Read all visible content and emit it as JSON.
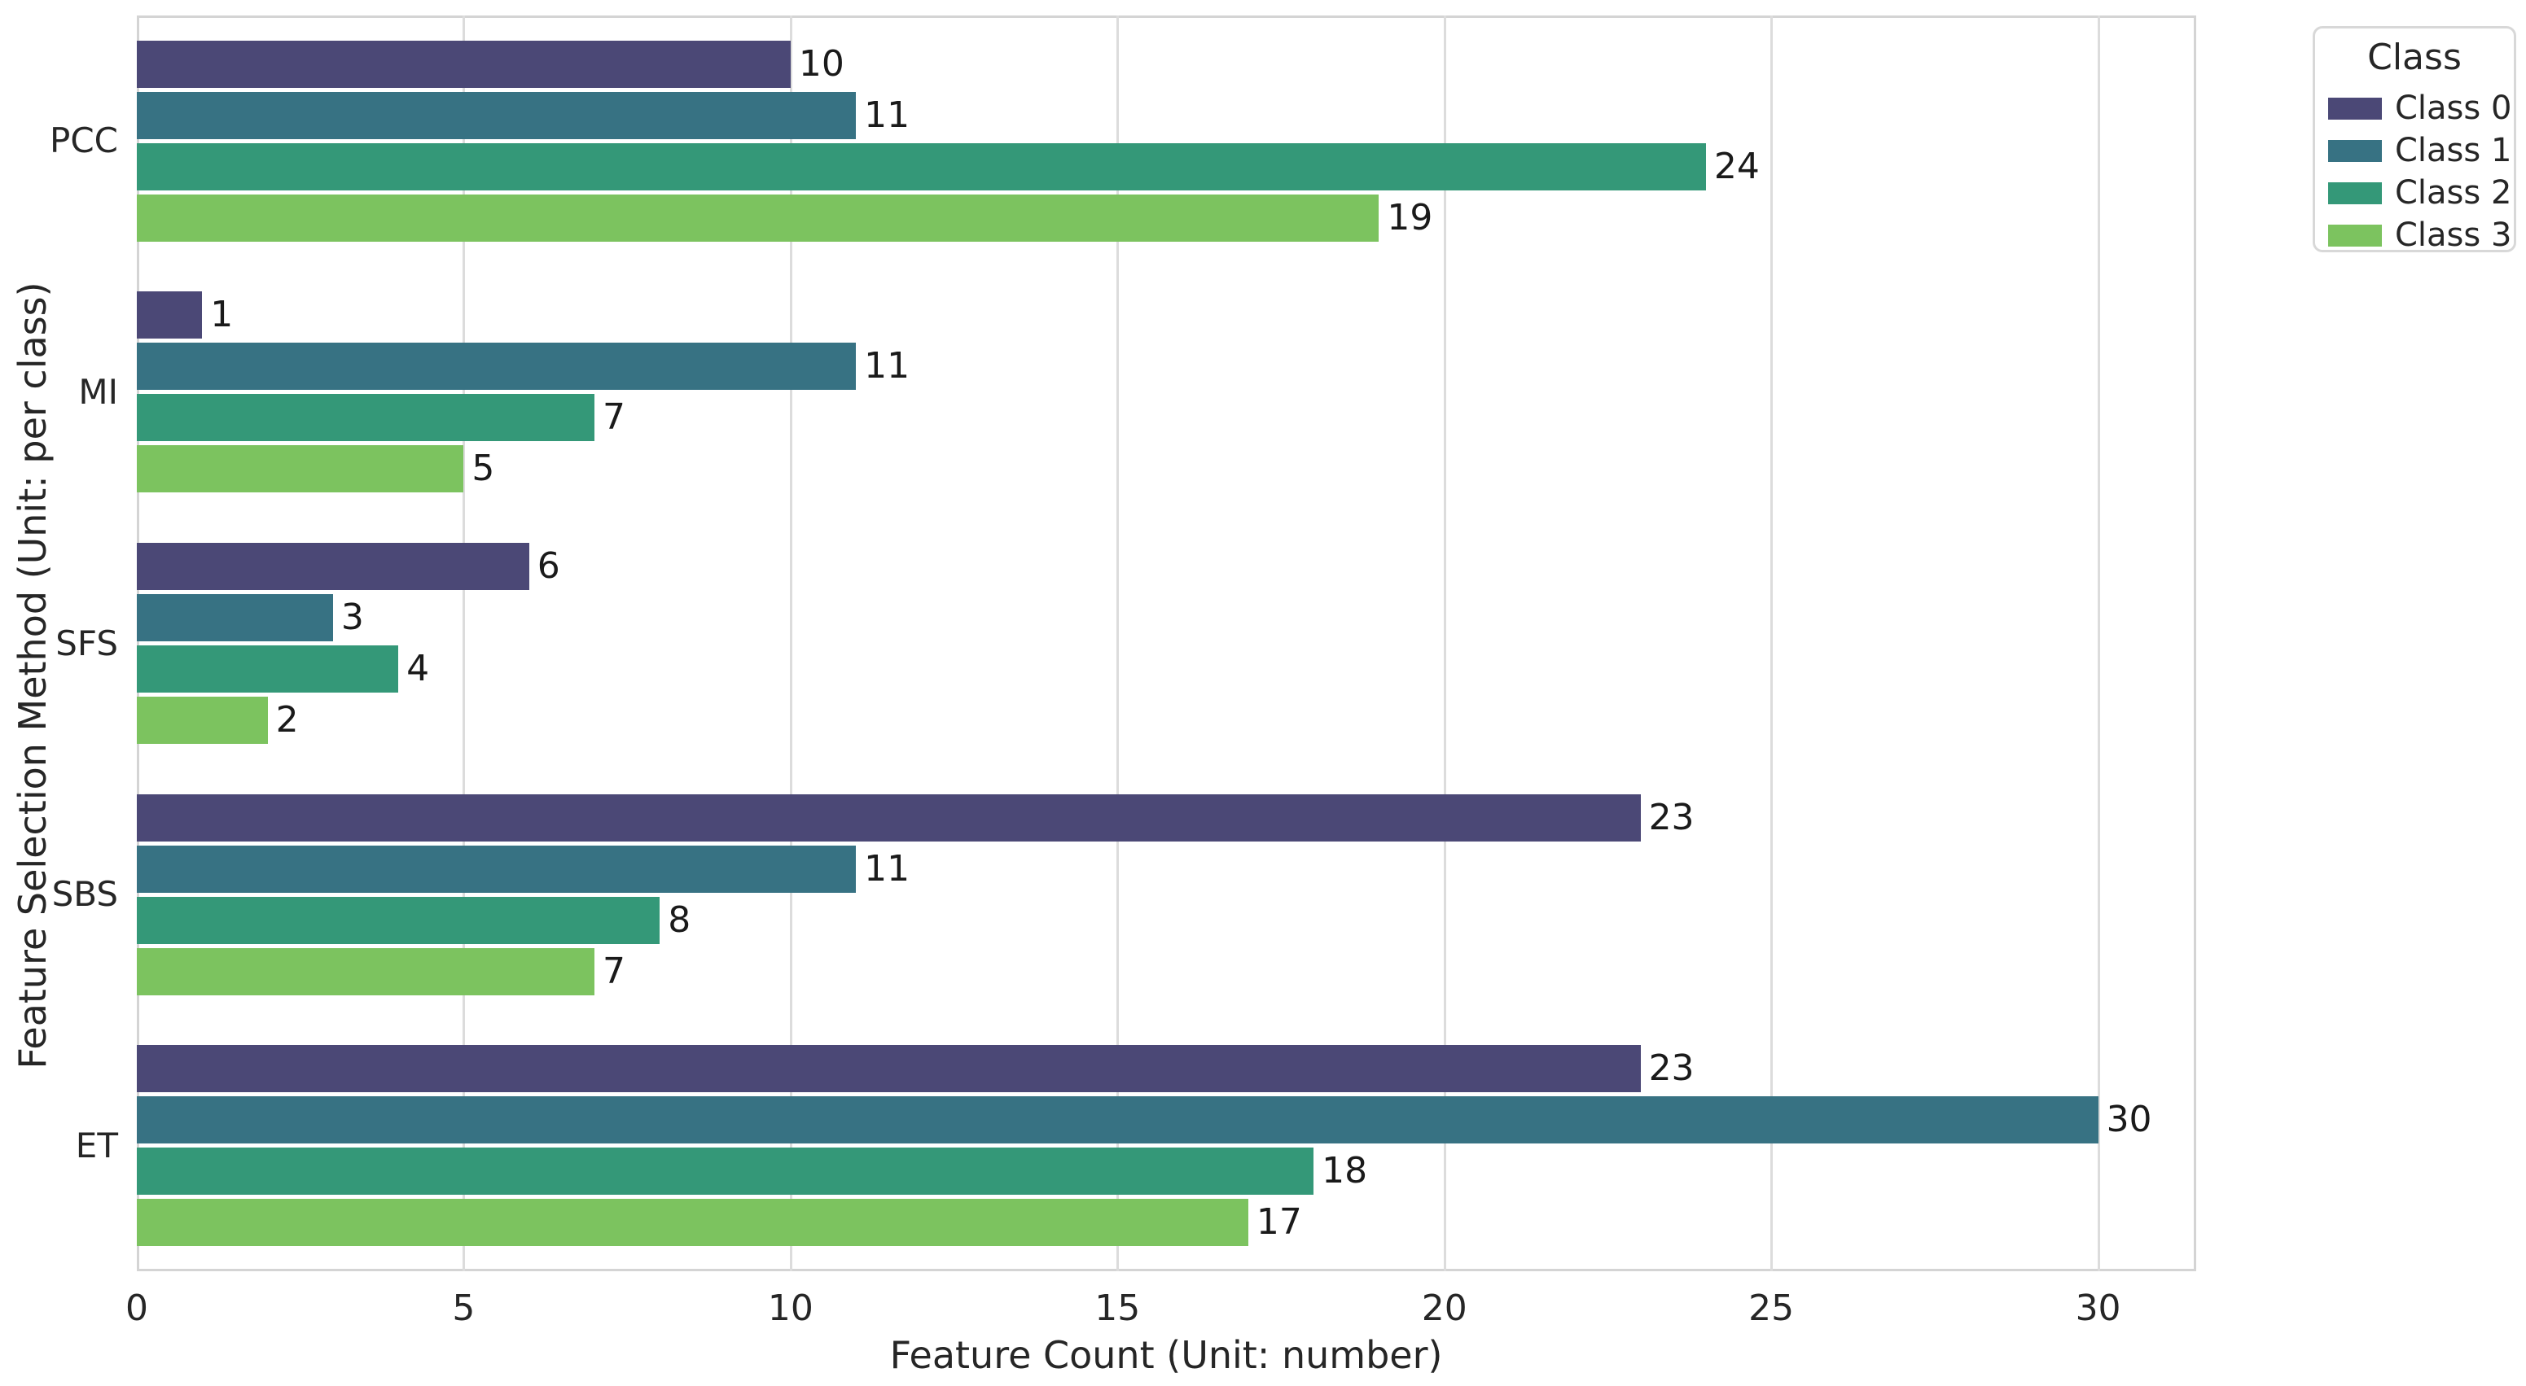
{
  "chart_data": {
    "type": "bar",
    "orientation": "horizontal",
    "xlabel": "Feature Count (Unit: number)",
    "ylabel": "Feature Selection Method (Unit: per class)",
    "categories": [
      "PCC",
      "MI",
      "SFS",
      "SBS",
      "ET"
    ],
    "series": [
      {
        "name": "Class 0",
        "color": "#4b4876",
        "values": [
          10,
          1,
          6,
          23,
          23
        ]
      },
      {
        "name": "Class 1",
        "color": "#377283",
        "values": [
          11,
          11,
          3,
          11,
          30
        ]
      },
      {
        "name": "Class 2",
        "color": "#349878",
        "values": [
          24,
          7,
          4,
          8,
          18
        ]
      },
      {
        "name": "Class 3",
        "color": "#7cc35f",
        "values": [
          19,
          5,
          2,
          7,
          17
        ]
      }
    ],
    "x_ticks": [
      0,
      5,
      10,
      15,
      20,
      25,
      30
    ],
    "xlim": [
      0,
      31.5
    ],
    "bar_labels": true,
    "grid": "vertical",
    "legend": {
      "title": "Class",
      "position": "upper-right-outside"
    }
  },
  "style_colors": {
    "grid": "#dcdcdc",
    "spine": "#d4d4d4",
    "text": "#262626",
    "background": "#ffffff"
  }
}
